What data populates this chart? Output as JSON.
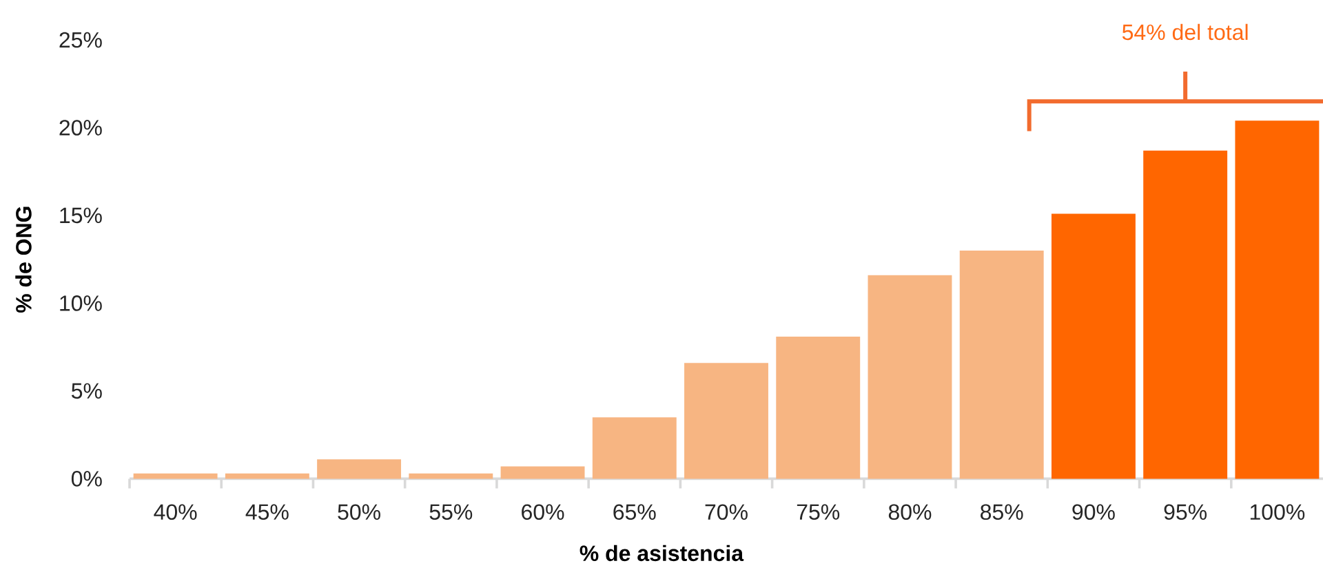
{
  "chart_data": {
    "type": "bar",
    "xlabel": "% de asistencia",
    "ylabel": "% de ONG",
    "categories": [
      "40%",
      "45%",
      "50%",
      "55%",
      "60%",
      "65%",
      "70%",
      "75%",
      "80%",
      "85%",
      "90%",
      "95%",
      "100%"
    ],
    "values": [
      0.3,
      0.3,
      1.1,
      0.3,
      0.7,
      3.5,
      6.6,
      8.1,
      11.6,
      13.0,
      15.1,
      18.7,
      20.4
    ],
    "colors": [
      "#f7b582",
      "#f7b582",
      "#f7b582",
      "#f7b582",
      "#f7b582",
      "#f7b582",
      "#f7b582",
      "#f7b582",
      "#f7b582",
      "#f7b582",
      "#ff6600",
      "#ff6600",
      "#ff6600"
    ],
    "ylim": [
      0,
      25
    ],
    "yticks": [
      {
        "value": 0,
        "label": "0%"
      },
      {
        "value": 5,
        "label": "5%"
      },
      {
        "value": 10,
        "label": "10%"
      },
      {
        "value": 15,
        "label": "15%"
      },
      {
        "value": 20,
        "label": "20%"
      },
      {
        "value": 25,
        "label": "25%"
      }
    ],
    "annotations": [
      "54% del total"
    ]
  }
}
